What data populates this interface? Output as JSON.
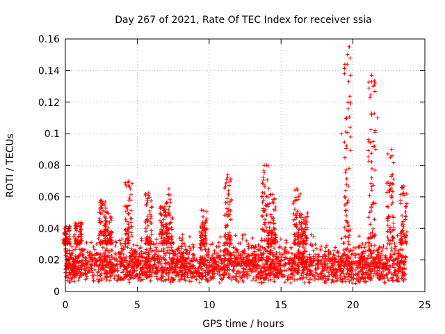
{
  "chart_data": {
    "type": "scatter",
    "title": "Day 267 of 2021, Rate Of TEC Index for receiver ssia",
    "xlabel": "GPS time / hours",
    "ylabel": "ROTI / TECUs",
    "xlim": [
      0,
      25
    ],
    "ylim": [
      0,
      0.16
    ],
    "xticks": [
      0,
      5,
      10,
      15,
      20,
      25
    ],
    "xtick_labels": [
      "0",
      "5",
      "10",
      "15",
      "20",
      "25"
    ],
    "yticks": [
      0,
      0.02,
      0.04,
      0.06,
      0.08,
      0.1,
      0.12,
      0.14,
      0.16
    ],
    "ytick_labels": [
      "0",
      "0.02",
      "0.04",
      "0.06",
      "0.08",
      "0.1",
      "0.12",
      "0.14",
      "0.16"
    ],
    "grid": true,
    "marker": "+",
    "series_color": "#ff0000",
    "x_range_covered": [
      0,
      23.7
    ],
    "baseline_band": [
      0.005,
      0.03
    ],
    "notable_points": [
      {
        "x": 19.75,
        "y": 0.155
      },
      {
        "x": 19.8,
        "y": 0.148
      },
      {
        "x": 19.6,
        "y": 0.144
      },
      {
        "x": 19.7,
        "y": 0.133
      },
      {
        "x": 19.8,
        "y": 0.12
      },
      {
        "x": 19.8,
        "y": 0.104
      },
      {
        "x": 19.2,
        "y": 0.1
      },
      {
        "x": 21.3,
        "y": 0.137
      },
      {
        "x": 21.4,
        "y": 0.13
      },
      {
        "x": 21.3,
        "y": 0.112
      },
      {
        "x": 21.7,
        "y": 0.11
      },
      {
        "x": 21.4,
        "y": 0.095
      },
      {
        "x": 21.6,
        "y": 0.09
      },
      {
        "x": 22.7,
        "y": 0.09
      },
      {
        "x": 22.6,
        "y": 0.085
      },
      {
        "x": 11.3,
        "y": 0.074
      },
      {
        "x": 14.0,
        "y": 0.08
      },
      {
        "x": 4.4,
        "y": 0.07
      },
      {
        "x": 7.2,
        "y": 0.065
      },
      {
        "x": 16.1,
        "y": 0.065
      },
      {
        "x": 23.5,
        "y": 0.067
      }
    ],
    "clusters": [
      {
        "x_center": 0.1,
        "peak": 0.042
      },
      {
        "x_center": 0.9,
        "peak": 0.044
      },
      {
        "x_center": 2.6,
        "peak": 0.058
      },
      {
        "x_center": 3.0,
        "peak": 0.05
      },
      {
        "x_center": 4.4,
        "peak": 0.07
      },
      {
        "x_center": 5.8,
        "peak": 0.063
      },
      {
        "x_center": 6.8,
        "peak": 0.055
      },
      {
        "x_center": 7.2,
        "peak": 0.065
      },
      {
        "x_center": 9.6,
        "peak": 0.053
      },
      {
        "x_center": 11.3,
        "peak": 0.074
      },
      {
        "x_center": 13.9,
        "peak": 0.08
      },
      {
        "x_center": 14.4,
        "peak": 0.062
      },
      {
        "x_center": 16.1,
        "peak": 0.065
      },
      {
        "x_center": 16.6,
        "peak": 0.05
      },
      {
        "x_center": 19.6,
        "peak": 0.155
      },
      {
        "x_center": 21.3,
        "peak": 0.137
      },
      {
        "x_center": 22.6,
        "peak": 0.09
      },
      {
        "x_center": 23.5,
        "peak": 0.067
      }
    ]
  }
}
